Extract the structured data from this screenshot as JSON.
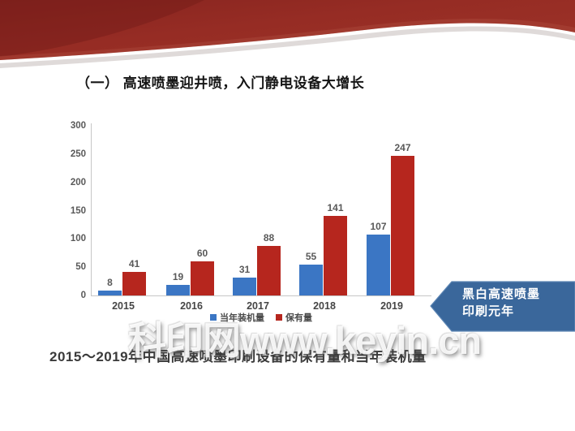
{
  "slide": {
    "title": "（一） 高速喷墨迎井喷，入门静电设备大增长",
    "caption": "2015～2019年中国高速喷墨印刷设备的保有量和当年装机量",
    "watermark": "科印网www.keyin.cn",
    "badge": {
      "line1": "黑白高速喷墨",
      "line2": "印刷元年",
      "color": "#3a679b"
    }
  },
  "colors": {
    "banner_red_dark": "#7c201b",
    "banner_red": "#942b23",
    "banner_red_light": "#a84335",
    "bar_blue": "#3b76c4",
    "bar_red": "#b6261e",
    "axis_line": "#c6c6c6",
    "value_label": "#595959"
  },
  "chart_data": {
    "type": "bar",
    "title": "2015～2019年中国高速喷墨印刷设备的保有量和当年装机量",
    "categories": [
      "2015",
      "2016",
      "2017",
      "2018",
      "2019"
    ],
    "series": [
      {
        "name": "当年装机量",
        "color": "#3b76c4",
        "values": [
          8,
          19,
          31,
          55,
          107
        ]
      },
      {
        "name": "保有量",
        "color": "#b6261e",
        "values": [
          41,
          60,
          88,
          141,
          247
        ]
      }
    ],
    "xlabel": "",
    "ylabel": "",
    "ylim": [
      0,
      300
    ],
    "yticks": [
      0,
      50,
      100,
      150,
      200,
      250,
      300
    ],
    "grid": false,
    "legend_position": "bottom",
    "data_labels": true
  }
}
